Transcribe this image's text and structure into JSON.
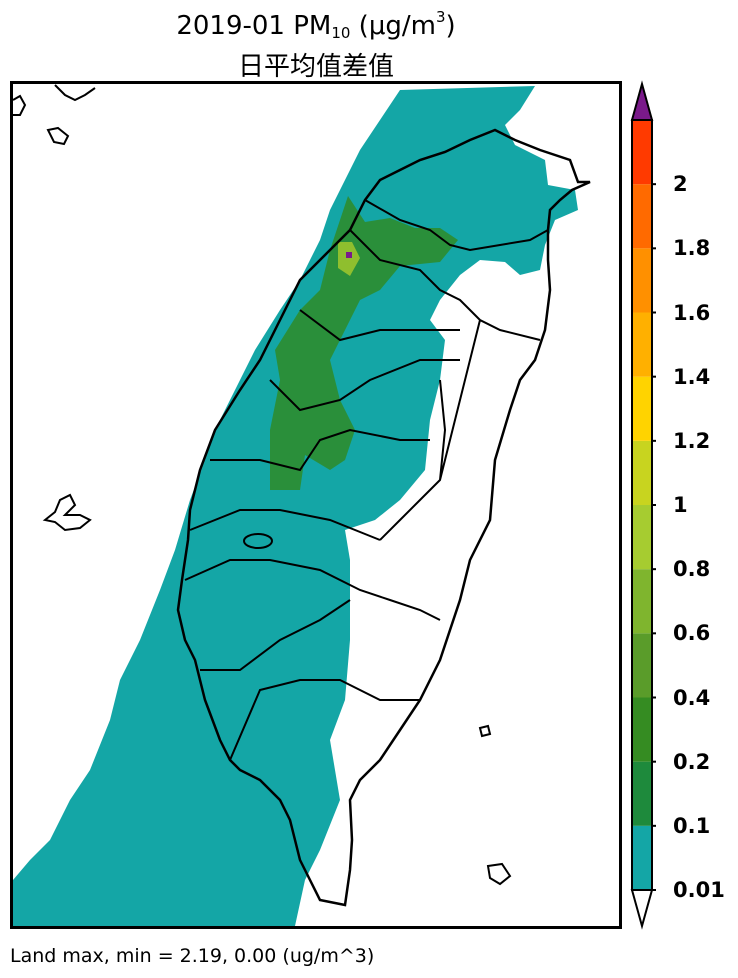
{
  "title": {
    "line1_prefix": "2019-01 PM",
    "line1_sub": "10",
    "line1_unit_open": " (μg/m",
    "line1_sup": "3",
    "line1_close": ")",
    "line2": "日平均值差值"
  },
  "colorbar": {
    "ticks": [
      "0.01",
      "0.1",
      "0.2",
      "0.4",
      "0.6",
      "0.8",
      "1",
      "1.2",
      "1.4",
      "1.6",
      "1.8",
      "2"
    ],
    "colors": [
      "#14a6a6",
      "#1e8a3c",
      "#358c22",
      "#5a9c2a",
      "#7fb52e",
      "#a6cc30",
      "#c8d41f",
      "#ffd300",
      "#ffb000",
      "#ff9000",
      "#ff6a00",
      "#ff3a00"
    ],
    "under_color": "#ffffff",
    "over_color": "#7a1a8a"
  },
  "footer": "Land max, min = 2.19, 0.00 (ug/m^3)"
}
